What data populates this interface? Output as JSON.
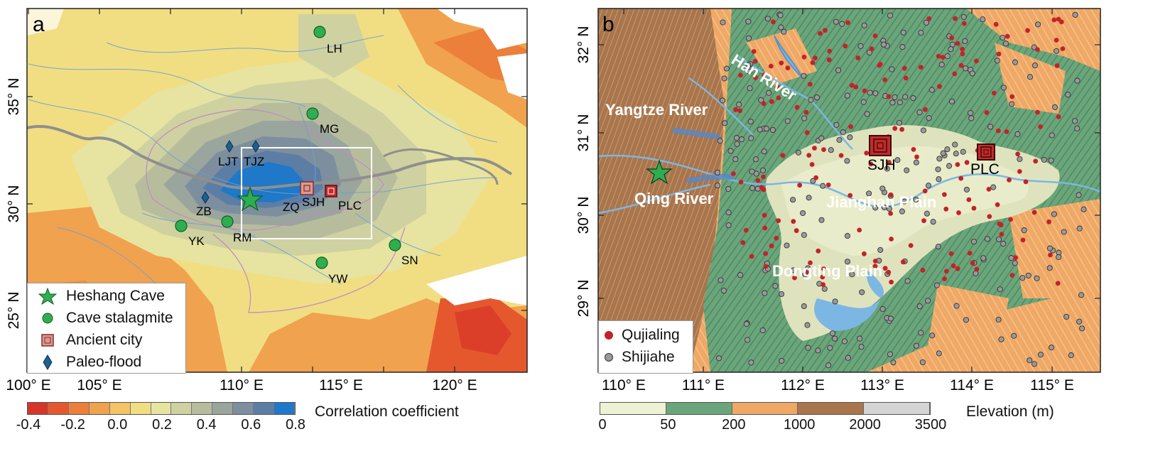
{
  "panel_a": {
    "label": "a",
    "lat_labels": [
      "35° N",
      "30° N",
      "25° N"
    ],
    "lon_labels": [
      "100° E",
      "105° E",
      "110° E",
      "115° E",
      "120° E"
    ],
    "sites": [
      {
        "name": "LH",
        "type": "stalagmite"
      },
      {
        "name": "MG",
        "type": "stalagmite"
      },
      {
        "name": "YK",
        "type": "stalagmite"
      },
      {
        "name": "RM",
        "type": "stalagmite"
      },
      {
        "name": "YW",
        "type": "stalagmite"
      },
      {
        "name": "SN",
        "type": "stalagmite"
      },
      {
        "name": "LJT",
        "type": "paleo-flood"
      },
      {
        "name": "TJZ",
        "type": "paleo-flood"
      },
      {
        "name": "ZB",
        "type": "paleo-flood"
      },
      {
        "name": "ZQ",
        "type": "label"
      },
      {
        "name": "SJH",
        "type": "ancient-city"
      },
      {
        "name": "PLC",
        "type": "ancient-city"
      }
    ],
    "legend": {
      "heshang": "Heshang Cave",
      "stalagmite": "Cave stalagmite",
      "city": "Ancient city",
      "flood": "Paleo-flood"
    },
    "colorbar": {
      "title": "Correlation coefficient",
      "ticks": [
        "-0.4",
        "-0.2",
        "0.0",
        "0.2",
        "0.4",
        "0.6",
        "0.8"
      ],
      "colors": [
        "#d7352a",
        "#e5582e",
        "#ec7f3a",
        "#f0a24e",
        "#f5c466",
        "#f1de83",
        "#e6e4a0",
        "#cfd1a0",
        "#b7bd9c",
        "#9aa59d",
        "#7d8f9f",
        "#5c7ea5",
        "#1f78c8"
      ]
    }
  },
  "panel_b": {
    "label": "b",
    "lat_labels": [
      "32° N",
      "31° N",
      "30° N",
      "29° N"
    ],
    "lon_labels": [
      "110° E",
      "111° E",
      "112° E",
      "113° E",
      "114° E",
      "115° E"
    ],
    "place_labels": {
      "han": "Han River",
      "yangtze": "Yangtze River",
      "qing": "Qing River",
      "jianghan": "Jianghan Plain",
      "dongting": "Dongting Plain",
      "sjh": "SJH",
      "plc": "PLC"
    },
    "legend": {
      "qujialing": "Qujialing",
      "shijiahe": "Shijiahe"
    },
    "colorbar": {
      "title": "Elevation (m)",
      "ticks": [
        "0",
        "50",
        "200",
        "1000",
        "2000",
        "3500"
      ],
      "colors": [
        "#eef2d4",
        "#6aa57b",
        "#efa865",
        "#a8754c",
        "#d4d4d4"
      ]
    }
  }
}
